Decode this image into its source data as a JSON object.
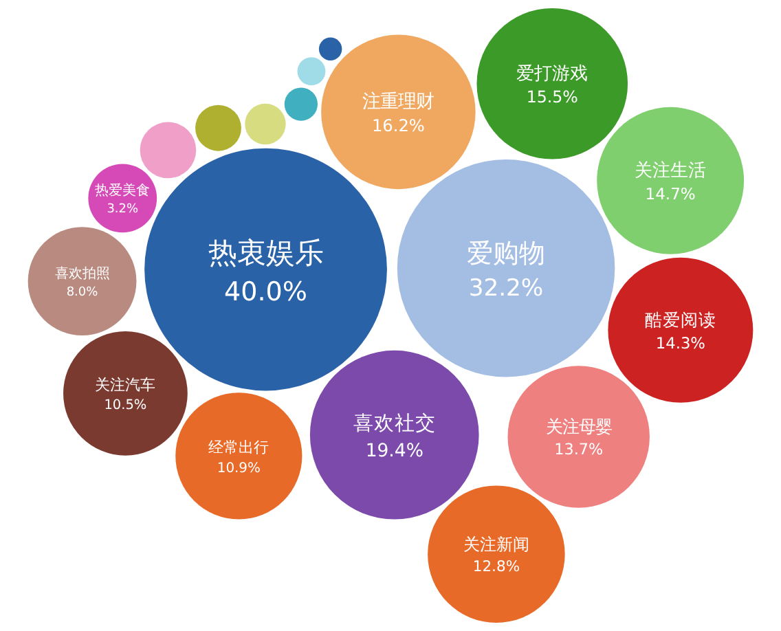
{
  "chart_data": {
    "type": "other",
    "categories": [
      "热衷娱乐",
      "爱购物",
      "注重理财",
      "爱打游戏",
      "关注生活",
      "酷爱阅读",
      "关注母婴",
      "关注新闻",
      "喜欢社交",
      "经常出行",
      "关注汽车",
      "喜欢拍照",
      "热爱美食"
    ],
    "values": [
      40.0,
      32.2,
      16.2,
      15.5,
      14.7,
      14.3,
      13.7,
      12.8,
      19.4,
      10.9,
      10.5,
      8.0,
      3.2
    ],
    "value_labels": [
      "40.0%",
      "32.2%",
      "16.2%",
      "15.5%",
      "14.7%",
      "14.3%",
      "13.7%",
      "12.8%",
      "19.4%",
      "10.9%",
      "10.5%",
      "8.0%",
      "3.2%"
    ],
    "colors": [
      "#2a62a8",
      "#a3bde3",
      "#f0a860",
      "#3c9a28",
      "#7fcf6e",
      "#cc2222",
      "#ee8080",
      "#e86a28",
      "#7b4aaa",
      "#e86a28",
      "#7b3a30",
      "#b88a80",
      "#d64ab8"
    ]
  }
}
